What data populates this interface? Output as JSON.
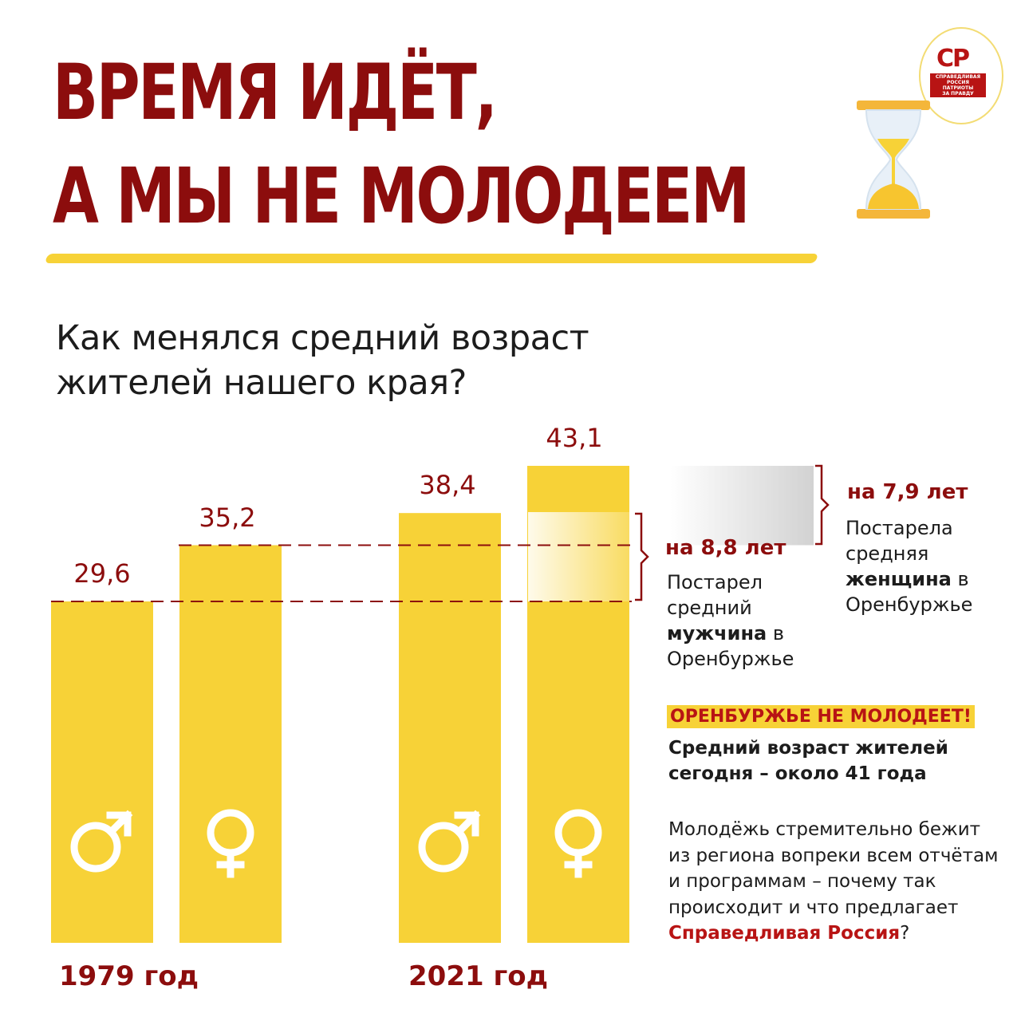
{
  "title": {
    "line1": "ВРЕМЯ ИДЁТ,",
    "line2": "А МЫ НЕ МОЛОДЕЕМ"
  },
  "logo": {
    "abbr": "СР",
    "line1": "СПРАВЕДЛИВАЯ",
    "line2": "РОССИЯ",
    "line3": "ПАТРИОТЫ",
    "line4": "ЗА ПРАВДУ"
  },
  "question": "Как менялся средний возраст жителей нашего края?",
  "colors": {
    "accent": "#8c0d0d",
    "bar": "#f7d237",
    "brand": "#b81414"
  },
  "chart_data": {
    "type": "bar",
    "categories": [
      "1979 год",
      "2021 год"
    ],
    "series": [
      {
        "values": [
          29.6,
          38.4
        ],
        "icon": "male-symbol-icon"
      },
      {
        "values": [
          35.2,
          43.1
        ],
        "icon": "female-symbol-icon"
      }
    ],
    "value_labels": [
      "29,6",
      "35,2",
      "38,4",
      "43,1"
    ],
    "ylim": [
      0,
      43.1
    ]
  },
  "annotations": {
    "male": {
      "diff": "на 8,8 лет",
      "text_before": "Постарел средний",
      "bold": "мужчина",
      "text_after": "в Оренбуржье"
    },
    "female": {
      "diff": "на 7,9 лет",
      "text_before": "Постарела средняя",
      "bold": "женщина",
      "text_after": "в Оренбуржье"
    }
  },
  "highlight": "ОРЕНБУРЖЬЕ НЕ МОЛОДЕЕТ!",
  "summary": "Средний возраст жителей сегодня – около 41 года",
  "paragraph": {
    "text": "Молодёжь стремительно бежит из региона вопреки всем отчётам и программам – почему так происходит и что предлагает",
    "brand": "Справедливая Россия",
    "end": "?"
  }
}
